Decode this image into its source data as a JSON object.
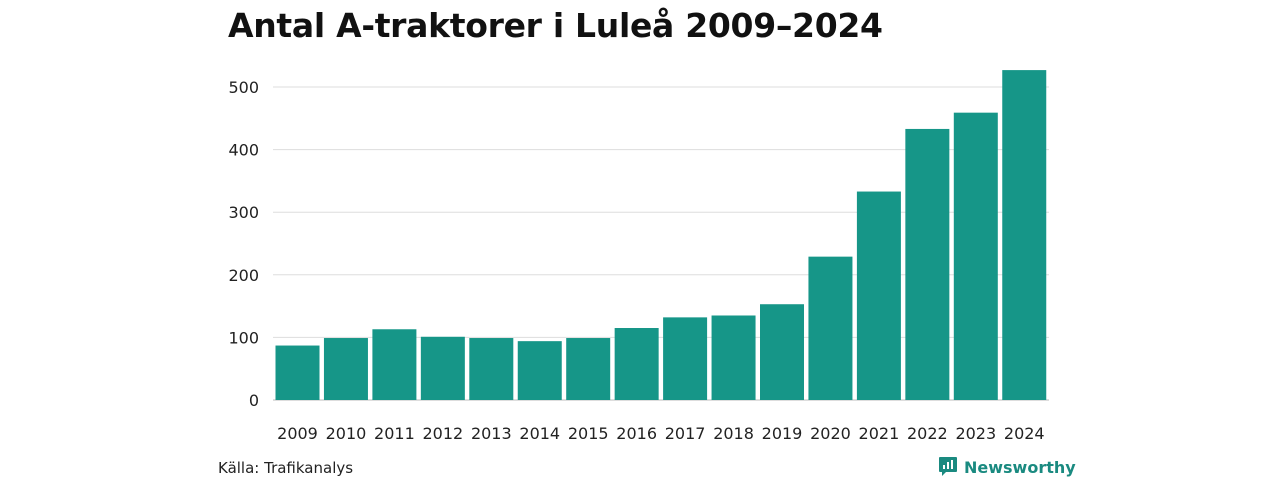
{
  "title": "Antal A-traktorer i Luleå 2009–2024",
  "source": "Källa: Trafikanalys",
  "brand": {
    "name": "Newsworthy",
    "icon": "newsworthy-logo-icon",
    "color": "#1a8a80"
  },
  "colors": {
    "bar": "#169688",
    "grid": "#dddddd",
    "axis": "#bbbbbb"
  },
  "chart_data": {
    "type": "bar",
    "title": "Antal A-traktorer i Luleå 2009–2024",
    "xlabel": "",
    "ylabel": "",
    "categories": [
      "2009",
      "2010",
      "2011",
      "2012",
      "2013",
      "2014",
      "2015",
      "2016",
      "2017",
      "2018",
      "2019",
      "2020",
      "2021",
      "2022",
      "2023",
      "2024"
    ],
    "values": [
      87,
      99,
      113,
      101,
      99,
      94,
      99,
      115,
      132,
      135,
      153,
      229,
      333,
      433,
      459,
      527
    ],
    "ylim": [
      0,
      530
    ],
    "yticks": [
      0,
      100,
      200,
      300,
      400,
      500
    ],
    "grid": true,
    "legend": "none"
  }
}
